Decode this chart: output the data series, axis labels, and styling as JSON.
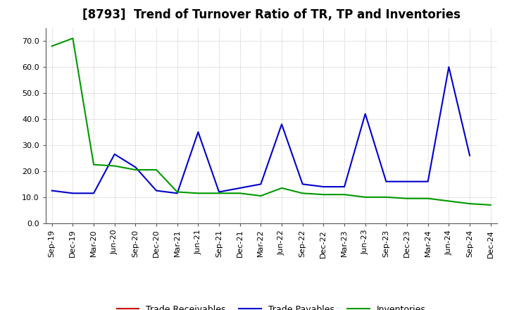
{
  "title": "[8793]  Trend of Turnover Ratio of TR, TP and Inventories",
  "x_labels": [
    "Sep-19",
    "Dec-19",
    "Mar-20",
    "Jun-20",
    "Sep-20",
    "Dec-20",
    "Mar-21",
    "Jun-21",
    "Sep-21",
    "Dec-21",
    "Mar-22",
    "Jun-22",
    "Sep-22",
    "Dec-22",
    "Mar-23",
    "Jun-23",
    "Sep-23",
    "Dec-23",
    "Mar-24",
    "Jun-24",
    "Sep-24",
    "Dec-24"
  ],
  "trade_receivables": [
    null,
    null,
    null,
    null,
    null,
    null,
    null,
    null,
    null,
    null,
    null,
    null,
    null,
    null,
    null,
    null,
    null,
    null,
    null,
    null,
    null,
    null
  ],
  "trade_payables": [
    12.5,
    11.5,
    11.5,
    26.5,
    21.5,
    12.5,
    11.5,
    35.0,
    12.0,
    13.5,
    15.0,
    38.0,
    15.0,
    14.0,
    14.0,
    42.0,
    16.0,
    16.0,
    16.0,
    60.0,
    26.0,
    null
  ],
  "inventories": [
    68.0,
    71.0,
    22.5,
    22.0,
    20.5,
    20.5,
    12.0,
    11.5,
    11.5,
    11.5,
    10.5,
    13.5,
    11.5,
    11.0,
    11.0,
    10.0,
    10.0,
    9.5,
    9.5,
    8.5,
    7.5,
    7.0
  ],
  "tr_color": "#cc0000",
  "tp_color": "#0000cc",
  "inv_color": "#009900",
  "ylim": [
    0.0,
    75.0
  ],
  "yticks": [
    0.0,
    10.0,
    20.0,
    30.0,
    40.0,
    50.0,
    60.0,
    70.0
  ],
  "bg_color": "#ffffff",
  "grid_color": "#999999",
  "legend_tr": "Trade Receivables",
  "legend_tp": "Trade Payables",
  "legend_inv": "Inventories",
  "title_fontsize": 12,
  "axis_fontsize": 8,
  "legend_fontsize": 9
}
